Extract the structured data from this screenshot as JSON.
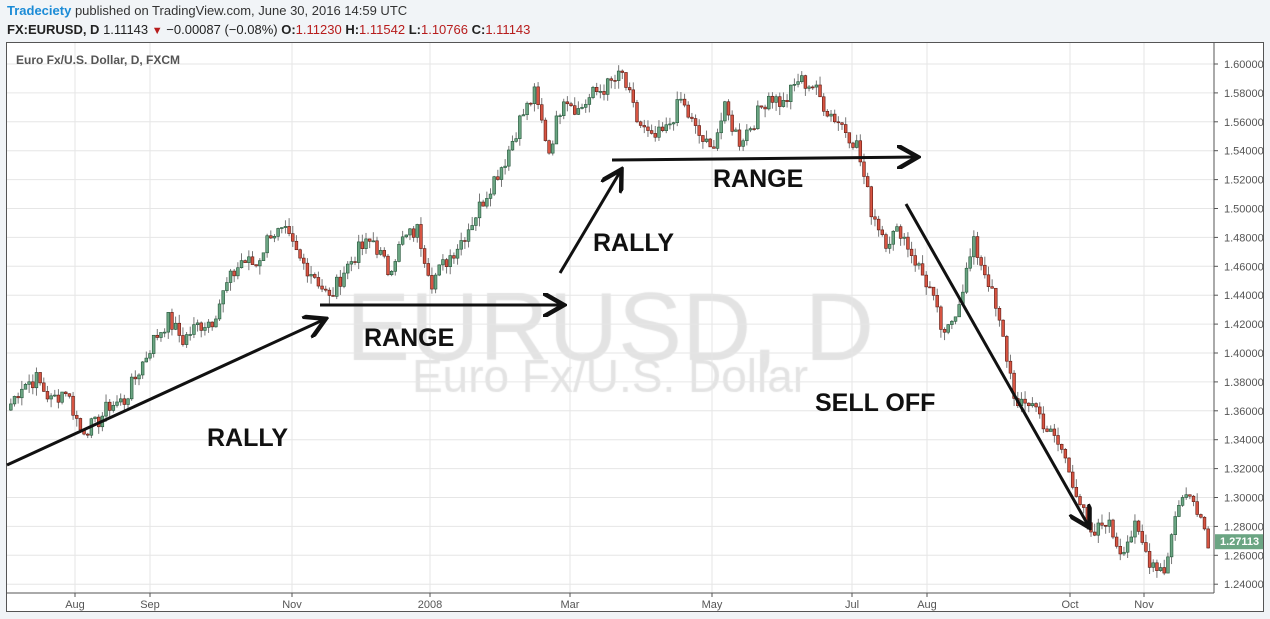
{
  "header": {
    "author": "Tradeciety",
    "published": "published on TradingView.com, June 30, 2016 14:59 UTC",
    "symbol": "FX:EURUSD, D",
    "last": "1.11143",
    "change": "−0.00087 (−0.08%)",
    "o_label": "O:",
    "o": "1.11230",
    "h_label": "H:",
    "h": "1.11542",
    "l_label": "L:",
    "l": "1.10766",
    "c_label": "C:",
    "c": "1.11143",
    "direction_icon": "triangle-down-icon"
  },
  "chart_label": "Euro Fx/U.S. Dollar, D, FXCM",
  "watermark": {
    "line1": "EURUSD, D",
    "line2": "Euro Fx/U.S. Dollar"
  },
  "colors": {
    "up": "#6ba583",
    "up_border": "#225437",
    "down": "#d75442",
    "down_border": "#5b1a13",
    "price_label": "#6ba583",
    "grid": "#e6e6e6"
  },
  "chart_data": {
    "type": "candlestick",
    "ylim": [
      1.23,
      1.615
    ],
    "y_ticks": [
      "1.60000",
      "1.58000",
      "1.56000",
      "1.54000",
      "1.52000",
      "1.50000",
      "1.48000",
      "1.46000",
      "1.44000",
      "1.42000",
      "1.40000",
      "1.38000",
      "1.36000",
      "1.34000",
      "1.32000",
      "1.30000",
      "1.28000",
      "1.26000",
      "1.24000"
    ],
    "x_ticks": [
      "Aug",
      "Sep",
      "Nov",
      "2008",
      "Mar",
      "May",
      "Jul",
      "Aug",
      "Oct",
      "Nov"
    ],
    "grid": true,
    "last_price_label": "1.27113",
    "close_path": [
      1.3605,
      1.378,
      1.382,
      1.367,
      1.375,
      1.347,
      1.35,
      1.364,
      1.367,
      1.388,
      1.409,
      1.423,
      1.409,
      1.419,
      1.423,
      1.447,
      1.464,
      1.461,
      1.484,
      1.482,
      1.464,
      1.454,
      1.437,
      1.457,
      1.471,
      1.478,
      1.457,
      1.478,
      1.485,
      1.45,
      1.464,
      1.478,
      1.496,
      1.516,
      1.534,
      1.561,
      1.579,
      1.54,
      1.579,
      1.568,
      1.579,
      1.585,
      1.592,
      1.561,
      1.547,
      1.554,
      1.575,
      1.554,
      1.54,
      1.568,
      1.547,
      1.561,
      1.579,
      1.572,
      1.589,
      1.585,
      1.568,
      1.558,
      1.544,
      1.499,
      1.478,
      1.485,
      1.464,
      1.444,
      1.409,
      1.437,
      1.475,
      1.45,
      1.409,
      1.361,
      1.367,
      1.347,
      1.333,
      1.305,
      1.271,
      1.285,
      1.264,
      1.278,
      1.257,
      1.25,
      1.298,
      1.302,
      1.271
    ],
    "annotations": [
      "RALLY",
      "RANGE",
      "RALLY",
      "RANGE",
      "SELL OFF"
    ]
  }
}
